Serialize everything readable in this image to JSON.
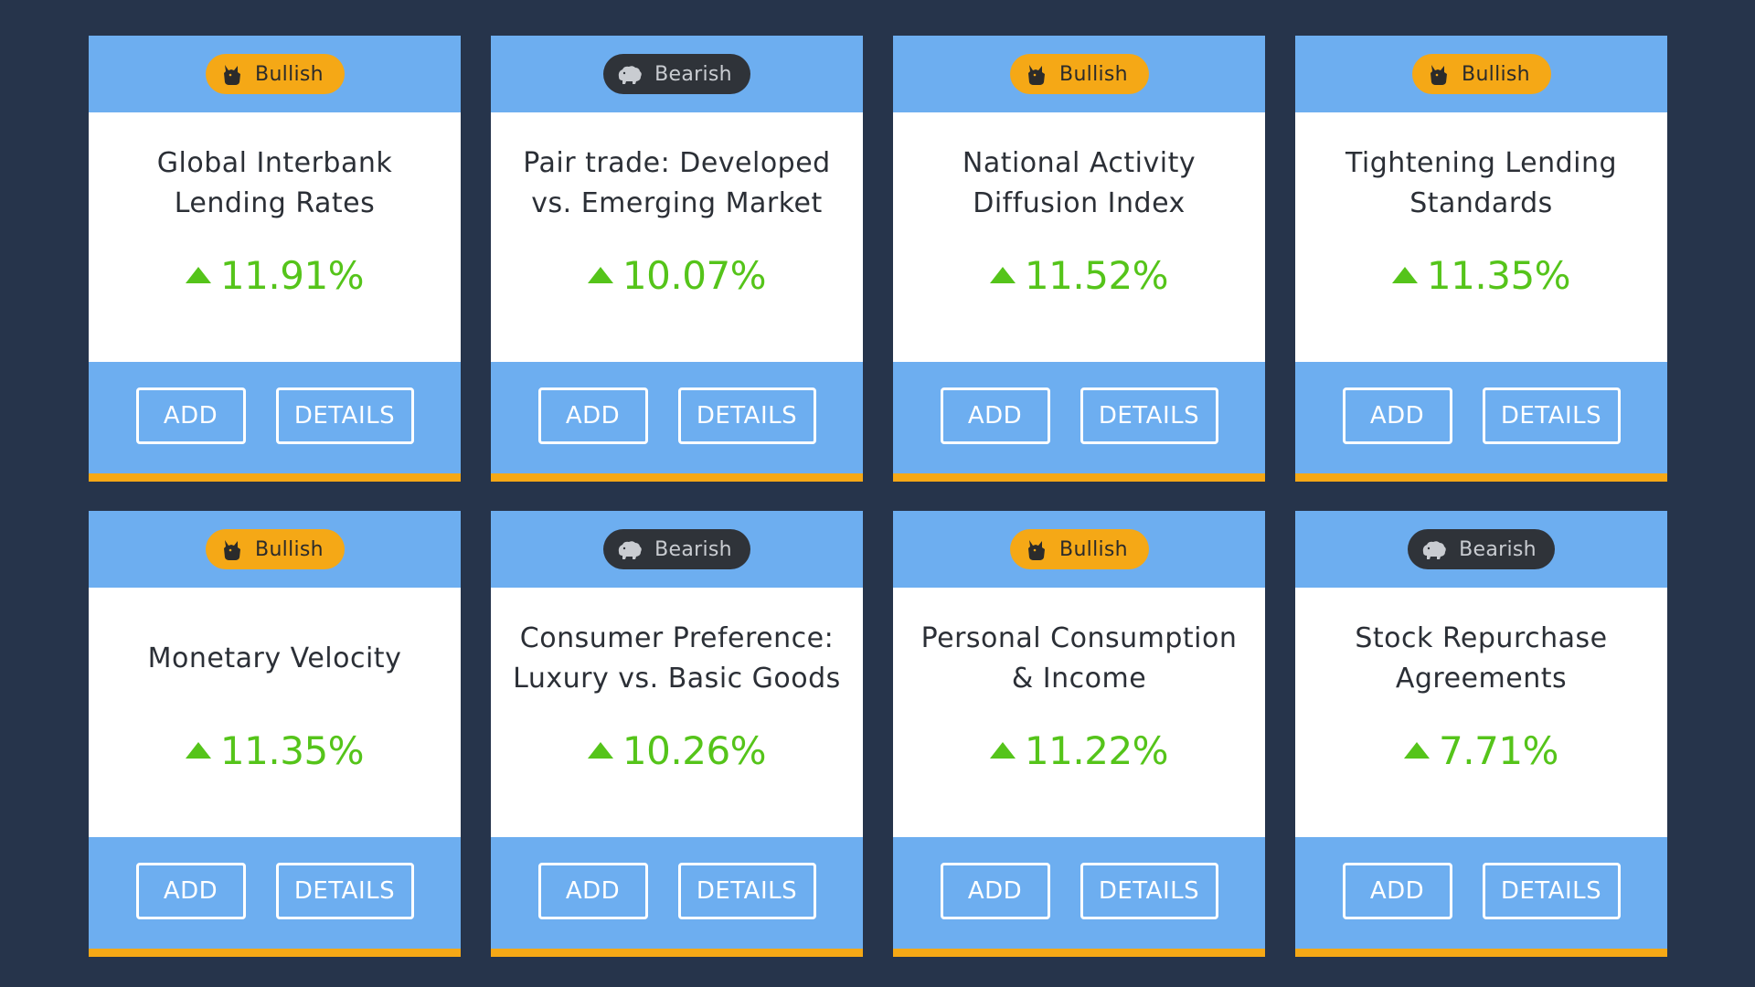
{
  "labels": {
    "add": "ADD",
    "details": "DETAILS"
  },
  "colors": {
    "background": "#26344b",
    "card_band": "#6daef0",
    "accent": "#f5a816",
    "bullish_badge": "#f5a816",
    "bearish_badge": "#2f3339",
    "positive": "#55c41a"
  },
  "cards": [
    {
      "sentiment": "bullish",
      "badge": "Bullish",
      "badge_icon": "bull-icon",
      "title_lines": [
        "Global Interbank",
        "Lending Rates"
      ],
      "change": "11.91%",
      "direction": "up"
    },
    {
      "sentiment": "bearish",
      "badge": "Bearish",
      "badge_icon": "bear-icon",
      "title_lines": [
        "Pair trade: Developed",
        "vs. Emerging Market"
      ],
      "change": "10.07%",
      "direction": "up"
    },
    {
      "sentiment": "bullish",
      "badge": "Bullish",
      "badge_icon": "bull-icon",
      "title_lines": [
        "National Activity",
        "Diffusion Index"
      ],
      "change": "11.52%",
      "direction": "up"
    },
    {
      "sentiment": "bullish",
      "badge": "Bullish",
      "badge_icon": "bull-icon",
      "title_lines": [
        "Tightening Lending",
        "Standards"
      ],
      "change": "11.35%",
      "direction": "up"
    },
    {
      "sentiment": "bullish",
      "badge": "Bullish",
      "badge_icon": "bull-icon",
      "title_lines": [
        "Monetary Velocity"
      ],
      "change": "11.35%",
      "direction": "up"
    },
    {
      "sentiment": "bearish",
      "badge": "Bearish",
      "badge_icon": "bear-icon",
      "title_lines": [
        "Consumer Preference:",
        "Luxury vs. Basic Goods"
      ],
      "change": "10.26%",
      "direction": "up"
    },
    {
      "sentiment": "bullish",
      "badge": "Bullish",
      "badge_icon": "bull-icon",
      "title_lines": [
        "Personal Consumption",
        "& Income"
      ],
      "change": "11.22%",
      "direction": "up"
    },
    {
      "sentiment": "bearish",
      "badge": "Bearish",
      "badge_icon": "bear-icon",
      "title_lines": [
        "Stock Repurchase",
        "Agreements"
      ],
      "change": "7.71%",
      "direction": "up"
    }
  ]
}
